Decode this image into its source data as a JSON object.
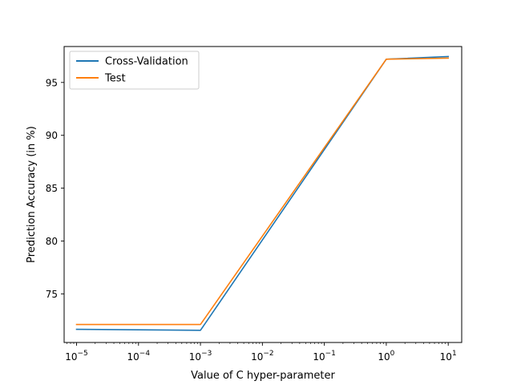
{
  "chart_data": {
    "type": "line",
    "title": "",
    "xlabel": "Value of C hyper-parameter",
    "ylabel": "Prediction Accuracy (in %)",
    "xscale": "log",
    "x": [
      1e-05,
      0.001,
      1,
      10
    ],
    "x_tick_labels": [
      {
        "base": "10",
        "exp": "−5",
        "value": 1e-05
      },
      {
        "base": "10",
        "exp": "−4",
        "value": 0.0001
      },
      {
        "base": "10",
        "exp": "−3",
        "value": 0.001
      },
      {
        "base": "10",
        "exp": "−2",
        "value": 0.01
      },
      {
        "base": "10",
        "exp": "−1",
        "value": 0.1
      },
      {
        "base": "10",
        "exp": "0",
        "value": 1
      },
      {
        "base": "10",
        "exp": "1",
        "value": 10
      }
    ],
    "y_ticks": [
      75,
      80,
      85,
      90,
      95
    ],
    "y_tick_labels": [
      "75",
      "80",
      "85",
      "90",
      "95"
    ],
    "ylim": [
      70.4,
      98.4
    ],
    "xlim": [
      6.3e-06,
      16.5
    ],
    "grid": false,
    "legend_position": "top-left",
    "series": [
      {
        "name": "Cross-Validation",
        "color": "#1f77b4",
        "values": [
          71.65,
          71.55,
          97.2,
          97.45
        ]
      },
      {
        "name": "Test",
        "color": "#ff7f0e",
        "values": [
          72.1,
          72.1,
          97.2,
          97.3
        ]
      }
    ]
  }
}
